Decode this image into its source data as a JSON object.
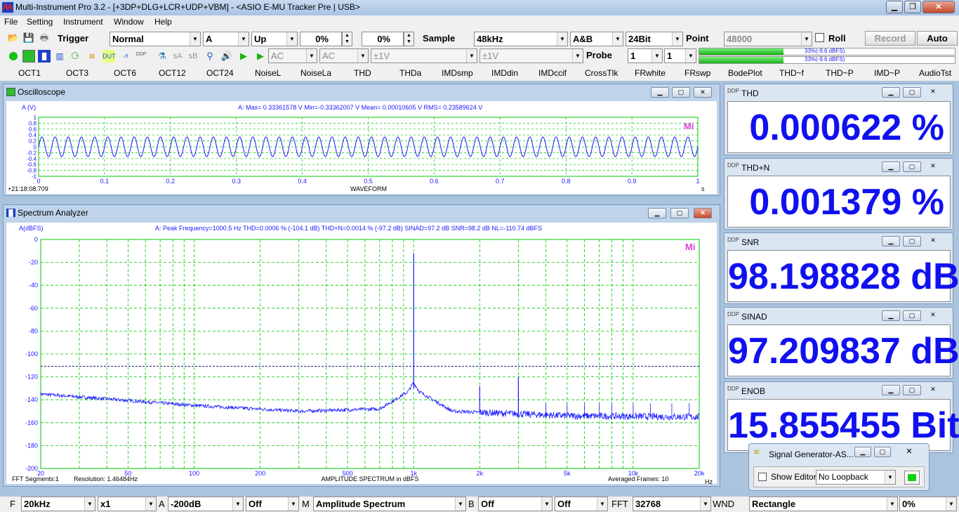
{
  "window": {
    "title": "Multi-Instrument Pro 3.2   -  [+3DP+DLG+LCR+UDP+VBM]   -  <ASIO E-MU Tracker Pre | USB>"
  },
  "menu": [
    "File",
    "Setting",
    "Instrument",
    "Window",
    "Help"
  ],
  "toolbar1": {
    "trigger_label": "Trigger",
    "trigger_mode": "Normal",
    "trigger_channel": "A",
    "trigger_edge": "Up",
    "trigger_level": "0%",
    "trigger_pretrig": "0%",
    "sample_label": "Sample",
    "sample_rate": "48kHz",
    "channels": "A&B",
    "bit_depth": "24Bit",
    "point_label": "Point",
    "points": "48000",
    "roll_label": "Roll",
    "record_label": "Record",
    "auto_label": "Auto"
  },
  "toolbar2": {
    "coupling_a": "AC",
    "coupling_b": "AC",
    "range_a": "±1V",
    "range_b": "±1V",
    "probe_label": "Probe",
    "probe_a": "1",
    "probe_b": "1",
    "level_a_text": "33%(-9.6 dBFS)",
    "level_b_text": "33%(-9.6 dBFS)",
    "level_a": 0.33,
    "level_b": 0.33
  },
  "quick_buttons": [
    "OCT1",
    "OCT3",
    "OCT6",
    "OCT12",
    "OCT24",
    "NoiseL",
    "NoiseLa",
    "THD",
    "THDa",
    "IMDsmp",
    "IMDdin",
    "IMDccif",
    "CrossTlk",
    "FRwhite",
    "FRswp",
    "BodePlot",
    "THD~f",
    "THD~P",
    "IMD~P",
    "AudioTst"
  ],
  "oscilloscope": {
    "title": "Oscilloscope",
    "ylabel": "A (V)",
    "stats": "A: Max= 0.33361578 V  Min=-0.33362007 V  Mean= 0.00010605 V  RMS= 0.23589624 V",
    "timestamp": "+21:18:08:709",
    "xlabel": "WAVEFORM",
    "xunit": "s",
    "watermark": "Mi",
    "yticks": [
      "1",
      "0.8",
      "0.6",
      "0.4",
      "0.2",
      "0",
      "-0.2",
      "-0.4",
      "-0.6",
      "-0.8",
      "-1"
    ],
    "xticks": [
      "0",
      "0.1",
      "0.2",
      "0.3",
      "0.4",
      "0.5",
      "0.6",
      "0.7",
      "0.8",
      "0.9",
      "1"
    ]
  },
  "spectrum": {
    "title": "Spectrum Analyzer",
    "ylabel": "A(dBFS)",
    "stats": "A: Peak Frequency=1000.5 Hz  THD=0.0006 % (-104.1 dB)  THD+N=0.0014 % (-97.2 dB)  SINAD=97.2 dB  SNR=98.2 dB  NL=-110.74 dBFS",
    "footer_left": "FFT Segments:1",
    "footer_res": "Resolution: 1.46484Hz",
    "xlabel": "AMPLITUDE SPECTRUM in dBFS",
    "footer_right": "Averaged Frames: 10",
    "xunit": "Hz",
    "watermark": "Mi",
    "yticks": [
      "0",
      "-20",
      "-40",
      "-60",
      "-80",
      "-100",
      "-120",
      "-140",
      "-160",
      "-180",
      "-200"
    ],
    "xticks": [
      "20",
      "50",
      "100",
      "200",
      "500",
      "1k",
      "2k",
      "5k",
      "10k",
      "20k"
    ]
  },
  "meters": [
    {
      "label": "THD",
      "value": "0.000622 %"
    },
    {
      "label": "THD+N",
      "value": "0.001379 %"
    },
    {
      "label": "SNR",
      "value": "98.198828 dB"
    },
    {
      "label": "SINAD",
      "value": "97.209837 dB"
    },
    {
      "label": "ENOB",
      "value": "15.855455 Bit"
    }
  ],
  "siggen": {
    "title": "Signal Generator-AS...",
    "show_editor": "Show Editor",
    "loopback": "No Loopback"
  },
  "bottombar": {
    "f_label": "F",
    "f_range": "20kHz",
    "f_zoom": "x1",
    "a_label": "A",
    "a_range": "-200dB",
    "a_off": "Off",
    "m_label": "M",
    "m_mode": "Amplitude Spectrum",
    "b_label": "B",
    "b_off": "Off",
    "b_off2": "Off",
    "fft_label": "FFT",
    "fft_size": "32768",
    "wnd_label": "WND",
    "window": "Rectangle",
    "overlap": "0%"
  },
  "colors": {
    "trace": "#1a1aff",
    "grid": "#00c800",
    "meter_text": "#1010f0",
    "noise_level": "#1a1a7a"
  },
  "spectrum_chart_data": {
    "type": "line",
    "x_scale": "log",
    "xlim": [
      20,
      20000
    ],
    "ylim": [
      -200,
      0
    ],
    "noise_level_dbfs": -110.74,
    "peaks": [
      {
        "x": 1000.5,
        "y": -12
      },
      {
        "x": 2000,
        "y": -128
      },
      {
        "x": 3000,
        "y": -120
      }
    ],
    "floor": [
      {
        "x": 20,
        "y": -135
      },
      {
        "x": 100,
        "y": -145
      },
      {
        "x": 300,
        "y": -150
      },
      {
        "x": 700,
        "y": -148
      },
      {
        "x": 1000,
        "y": -130
      },
      {
        "x": 1500,
        "y": -150
      },
      {
        "x": 5000,
        "y": -154
      },
      {
        "x": 20000,
        "y": -155
      }
    ]
  },
  "scope_chart_data": {
    "type": "line",
    "frequency_hz": 1000.5,
    "amplitude_v": 0.3336,
    "xlim": [
      0,
      1
    ],
    "ylim": [
      -1,
      1
    ]
  }
}
